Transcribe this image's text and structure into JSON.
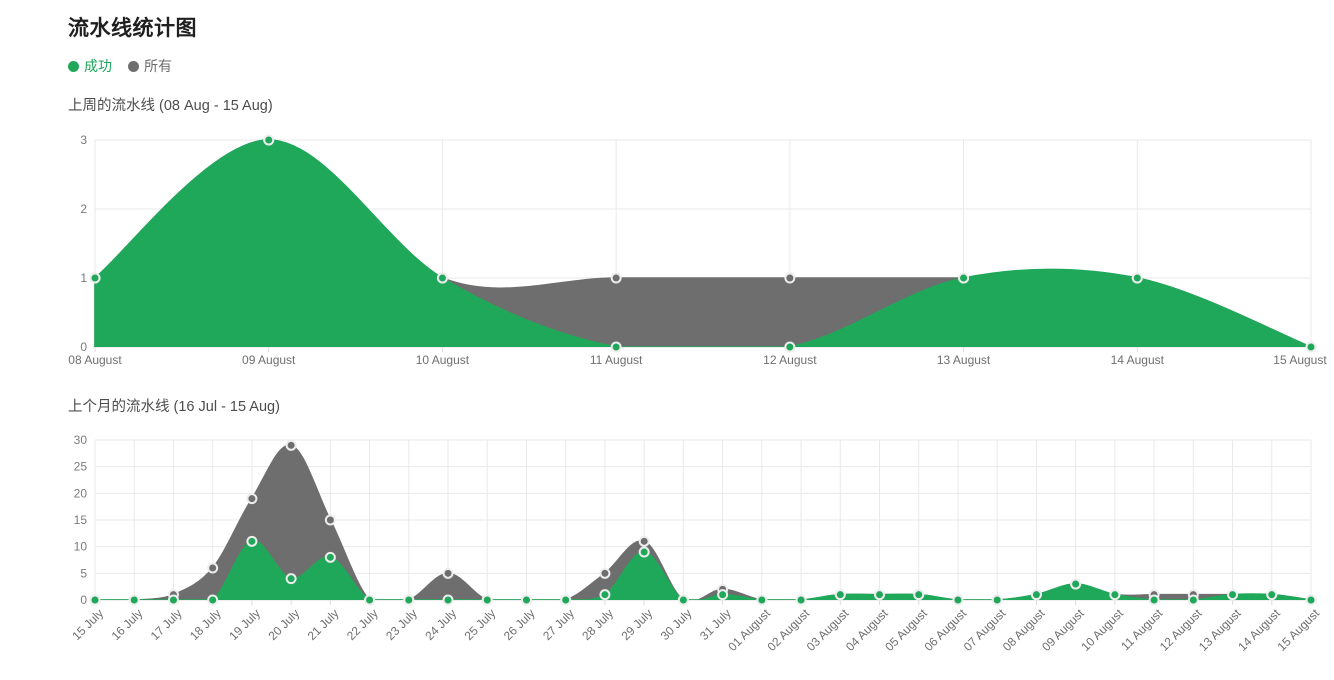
{
  "page": {
    "title": "流水线统计图"
  },
  "legend": [
    {
      "label": "成功",
      "color": "#1fa85a"
    },
    {
      "label": "所有",
      "color": "#6e6e6e"
    }
  ],
  "chart_data": [
    {
      "type": "area",
      "title": "上周的流水线 (08 Aug - 15 Aug)",
      "categories": [
        "08 August",
        "09 August",
        "10 August",
        "11 August",
        "12 August",
        "13 August",
        "14 August",
        "15 August"
      ],
      "series": [
        {
          "name": "所有",
          "color": "#6e6e6e",
          "values": [
            1,
            3,
            1,
            1,
            1,
            1,
            1,
            0
          ]
        },
        {
          "name": "成功",
          "color": "#1fa85a",
          "values": [
            1,
            3,
            1,
            0,
            0,
            1,
            1,
            0
          ]
        }
      ],
      "xlabel": "",
      "ylabel": "",
      "ylim": [
        0,
        3
      ],
      "yticks": [
        0,
        1,
        2,
        3
      ],
      "grid": true,
      "legend_position": "top-left",
      "x_label_rotation": 0,
      "interpolation": "cardinal-smooth"
    },
    {
      "type": "area",
      "title": "上个月的流水线 (16 Jul - 15 Aug)",
      "categories": [
        "15 July",
        "16 July",
        "17 July",
        "18 July",
        "19 July",
        "20 July",
        "21 July",
        "22 July",
        "23 July",
        "24 July",
        "25 July",
        "26 July",
        "27 July",
        "28 July",
        "29 July",
        "30 July",
        "31 July",
        "01 August",
        "02 August",
        "03 August",
        "04 August",
        "05 August",
        "06 August",
        "07 August",
        "08 August",
        "09 August",
        "10 August",
        "11 August",
        "12 August",
        "13 August",
        "14 August",
        "15 August"
      ],
      "series": [
        {
          "name": "所有",
          "color": "#6e6e6e",
          "values": [
            0,
            0,
            1,
            6,
            19,
            29,
            15,
            0,
            0,
            5,
            0,
            0,
            0,
            5,
            11,
            0,
            2,
            0,
            0,
            1,
            1,
            1,
            0,
            0,
            1,
            3,
            1,
            1,
            1,
            1,
            1,
            0
          ]
        },
        {
          "name": "成功",
          "color": "#1fa85a",
          "values": [
            0,
            0,
            0,
            0,
            11,
            4,
            8,
            0,
            0,
            0,
            0,
            0,
            0,
            1,
            9,
            0,
            1,
            0,
            0,
            1,
            1,
            1,
            0,
            0,
            1,
            3,
            1,
            0,
            0,
            1,
            1,
            0
          ]
        }
      ],
      "xlabel": "",
      "ylabel": "",
      "ylim": [
        0,
        30
      ],
      "yticks": [
        0,
        5,
        10,
        15,
        20,
        25,
        30
      ],
      "grid": true,
      "legend_position": "top-left",
      "x_label_rotation": -45,
      "interpolation": "cardinal-smooth"
    }
  ],
  "theme": {
    "success_color": "#1fa85a",
    "all_color": "#6e6e6e",
    "gridline_color": "#e9e9e9",
    "axis_line_color": "#dcdcdc",
    "tick_label_color": "#7b7b7b",
    "marker_stroke_color": "#ededed"
  }
}
